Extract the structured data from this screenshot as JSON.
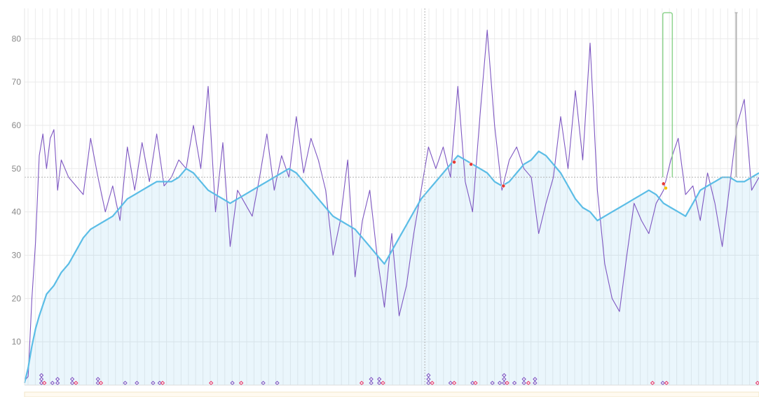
{
  "chart_data": {
    "type": "line",
    "title": "",
    "xlabel": "",
    "ylabel": "",
    "ylim": [
      0,
      87
    ],
    "yticks": [
      10,
      20,
      30,
      40,
      50,
      60,
      70,
      80
    ],
    "xlim": [
      0,
      100
    ],
    "grid": true,
    "reference_lines": {
      "y": 48,
      "x": 54.5
    },
    "series": [
      {
        "name": "",
        "kind": "line",
        "color": "#7e57c2",
        "x": [
          0,
          0.5,
          1,
          1.5,
          2,
          2.5,
          3,
          3.5,
          4,
          4.5,
          5,
          6,
          7,
          8,
          9,
          10,
          11,
          12,
          13,
          14,
          15,
          16,
          17,
          18,
          19,
          20,
          21,
          22,
          23,
          24,
          25,
          26,
          27,
          28,
          29,
          30,
          31,
          32,
          33,
          34,
          35,
          36,
          37,
          38,
          39,
          40,
          41,
          42,
          43,
          44,
          45,
          46,
          47,
          48,
          49,
          50,
          51,
          52,
          53,
          54,
          55,
          56,
          57,
          58,
          59,
          60,
          61,
          62,
          63,
          64,
          65,
          66,
          67,
          68,
          69,
          70,
          71,
          72,
          73,
          74,
          75,
          76,
          77,
          78,
          79,
          80,
          81,
          82,
          83,
          84,
          85,
          86,
          87,
          88,
          89,
          90,
          91,
          92,
          93,
          94,
          95,
          96,
          97,
          98,
          99,
          100
        ],
        "values": [
          1,
          2,
          20,
          33,
          53,
          58,
          50,
          57,
          59,
          45,
          52,
          48,
          46,
          44,
          57,
          48,
          40,
          46,
          38,
          55,
          45,
          56,
          47,
          58,
          46,
          48,
          52,
          50,
          60,
          50,
          69,
          40,
          56,
          32,
          45,
          42,
          39,
          48,
          58,
          45,
          53,
          48,
          62,
          49,
          57,
          52,
          45,
          30,
          38,
          52,
          25,
          38,
          45,
          30,
          18,
          35,
          16,
          23,
          35,
          45,
          55,
          50,
          55,
          48,
          69,
          47,
          40,
          62,
          82,
          60,
          45,
          52,
          55,
          50,
          48,
          35,
          42,
          48,
          62,
          50,
          68,
          52,
          79,
          45,
          28,
          20,
          17,
          30,
          42,
          38,
          35,
          42,
          45,
          52,
          57,
          44,
          46,
          38,
          49,
          42,
          32,
          46,
          60,
          66,
          45,
          48
        ]
      },
      {
        "name": "",
        "kind": "area",
        "color": "#5bbde6",
        "x": [
          0,
          0.5,
          1,
          1.5,
          2,
          3,
          4,
          5,
          6,
          7,
          8,
          9,
          10,
          11,
          12,
          13,
          14,
          15,
          16,
          17,
          18,
          19,
          20,
          21,
          22,
          23,
          24,
          25,
          26,
          27,
          28,
          29,
          30,
          31,
          32,
          33,
          34,
          35,
          36,
          37,
          38,
          39,
          40,
          41,
          42,
          43,
          44,
          45,
          46,
          47,
          48,
          49,
          50,
          51,
          52,
          53,
          54,
          55,
          56,
          57,
          58,
          59,
          60,
          61,
          62,
          63,
          64,
          65,
          66,
          67,
          68,
          69,
          70,
          71,
          72,
          73,
          74,
          75,
          76,
          77,
          78,
          79,
          80,
          81,
          82,
          83,
          84,
          85,
          86,
          87,
          88,
          89,
          90,
          91,
          92,
          93,
          94,
          95,
          96,
          97,
          98,
          99,
          100
        ],
        "values": [
          0.5,
          4,
          9,
          13,
          16,
          21,
          23,
          26,
          28,
          31,
          34,
          36,
          37,
          38,
          39,
          41,
          43,
          44,
          45,
          46,
          47,
          47,
          47,
          48,
          50,
          49,
          47,
          45,
          44,
          43,
          42,
          43,
          44,
          45,
          46,
          47,
          48,
          49,
          50,
          49,
          47,
          45,
          43,
          41,
          39,
          38,
          37,
          36,
          34,
          32,
          30,
          28,
          31,
          34,
          37,
          40,
          43,
          45,
          47,
          49,
          51,
          53,
          52,
          51,
          50,
          49,
          47,
          46,
          47,
          49,
          51,
          52,
          54,
          53,
          51,
          49,
          46,
          43,
          41,
          40,
          38,
          39,
          40,
          41,
          42,
          43,
          44,
          45,
          44,
          42,
          41,
          40,
          39,
          42,
          45,
          46,
          47,
          48,
          48,
          47,
          47,
          48,
          49
        ]
      }
    ],
    "point_markers": [
      {
        "x": 58.5,
        "y": 51.5,
        "color": "#e53935"
      },
      {
        "x": 60.8,
        "y": 51,
        "color": "#e53935"
      },
      {
        "x": 65.2,
        "y": 46,
        "color": "#e53935"
      },
      {
        "x": 87.0,
        "y": 46.5,
        "color": "#e53935"
      },
      {
        "x": 87.3,
        "y": 45.5,
        "color": "#f2c200"
      }
    ],
    "range_bars": [
      {
        "x0": 86.9,
        "x1": 88.2,
        "y0": 48,
        "y1": 86,
        "color": "#8fd48f"
      },
      {
        "x0": 96.9,
        "x1": 96.9,
        "y0": 48,
        "y1": 86,
        "color": "#b5b5b5"
      }
    ],
    "event_markers": [
      {
        "x": 2.3,
        "stack": 3,
        "color": "#7e57c2"
      },
      {
        "x": 2.7,
        "stack": 1,
        "color": "#e5396b"
      },
      {
        "x": 3.8,
        "stack": 1,
        "color": "#7e57c2"
      },
      {
        "x": 4.5,
        "stack": 2,
        "color": "#7e57c2"
      },
      {
        "x": 6.5,
        "stack": 2,
        "color": "#7e57c2"
      },
      {
        "x": 7.0,
        "stack": 1,
        "color": "#e5396b"
      },
      {
        "x": 10.0,
        "stack": 2,
        "color": "#7e57c2"
      },
      {
        "x": 10.4,
        "stack": 1,
        "color": "#e5396b"
      },
      {
        "x": 13.7,
        "stack": 1,
        "color": "#7e57c2"
      },
      {
        "x": 15.3,
        "stack": 1,
        "color": "#7e57c2"
      },
      {
        "x": 17.5,
        "stack": 1,
        "color": "#7e57c2"
      },
      {
        "x": 18.4,
        "stack": 1,
        "color": "#7e57c2"
      },
      {
        "x": 18.8,
        "stack": 1,
        "color": "#e5396b"
      },
      {
        "x": 25.4,
        "stack": 1,
        "color": "#e5396b"
      },
      {
        "x": 28.3,
        "stack": 1,
        "color": "#7e57c2"
      },
      {
        "x": 29.5,
        "stack": 1,
        "color": "#e5396b"
      },
      {
        "x": 32.5,
        "stack": 1,
        "color": "#7e57c2"
      },
      {
        "x": 34.4,
        "stack": 1,
        "color": "#7e57c2"
      },
      {
        "x": 45.9,
        "stack": 1,
        "color": "#e5396b"
      },
      {
        "x": 47.2,
        "stack": 2,
        "color": "#7e57c2"
      },
      {
        "x": 48.3,
        "stack": 2,
        "color": "#7e57c2"
      },
      {
        "x": 48.8,
        "stack": 1,
        "color": "#e5396b"
      },
      {
        "x": 55.0,
        "stack": 3,
        "color": "#7e57c2"
      },
      {
        "x": 55.5,
        "stack": 1,
        "color": "#e5396b"
      },
      {
        "x": 58.0,
        "stack": 1,
        "color": "#7e57c2"
      },
      {
        "x": 58.5,
        "stack": 1,
        "color": "#e5396b"
      },
      {
        "x": 61.0,
        "stack": 1,
        "color": "#7e57c2"
      },
      {
        "x": 61.4,
        "stack": 1,
        "color": "#e5396b"
      },
      {
        "x": 63.7,
        "stack": 1,
        "color": "#7e57c2"
      },
      {
        "x": 64.7,
        "stack": 1,
        "color": "#7e57c2"
      },
      {
        "x": 65.3,
        "stack": 3,
        "color": "#7e57c2"
      },
      {
        "x": 65.7,
        "stack": 1,
        "color": "#e5396b"
      },
      {
        "x": 66.7,
        "stack": 1,
        "color": "#7e57c2"
      },
      {
        "x": 68.0,
        "stack": 2,
        "color": "#7e57c2"
      },
      {
        "x": 68.6,
        "stack": 1,
        "color": "#e5396b"
      },
      {
        "x": 69.5,
        "stack": 2,
        "color": "#7e57c2"
      },
      {
        "x": 85.5,
        "stack": 1,
        "color": "#e5396b"
      },
      {
        "x": 86.9,
        "stack": 1,
        "color": "#7e57c2"
      },
      {
        "x": 87.4,
        "stack": 1,
        "color": "#e5396b"
      },
      {
        "x": 99.8,
        "stack": 1,
        "color": "#e5396b"
      }
    ]
  }
}
